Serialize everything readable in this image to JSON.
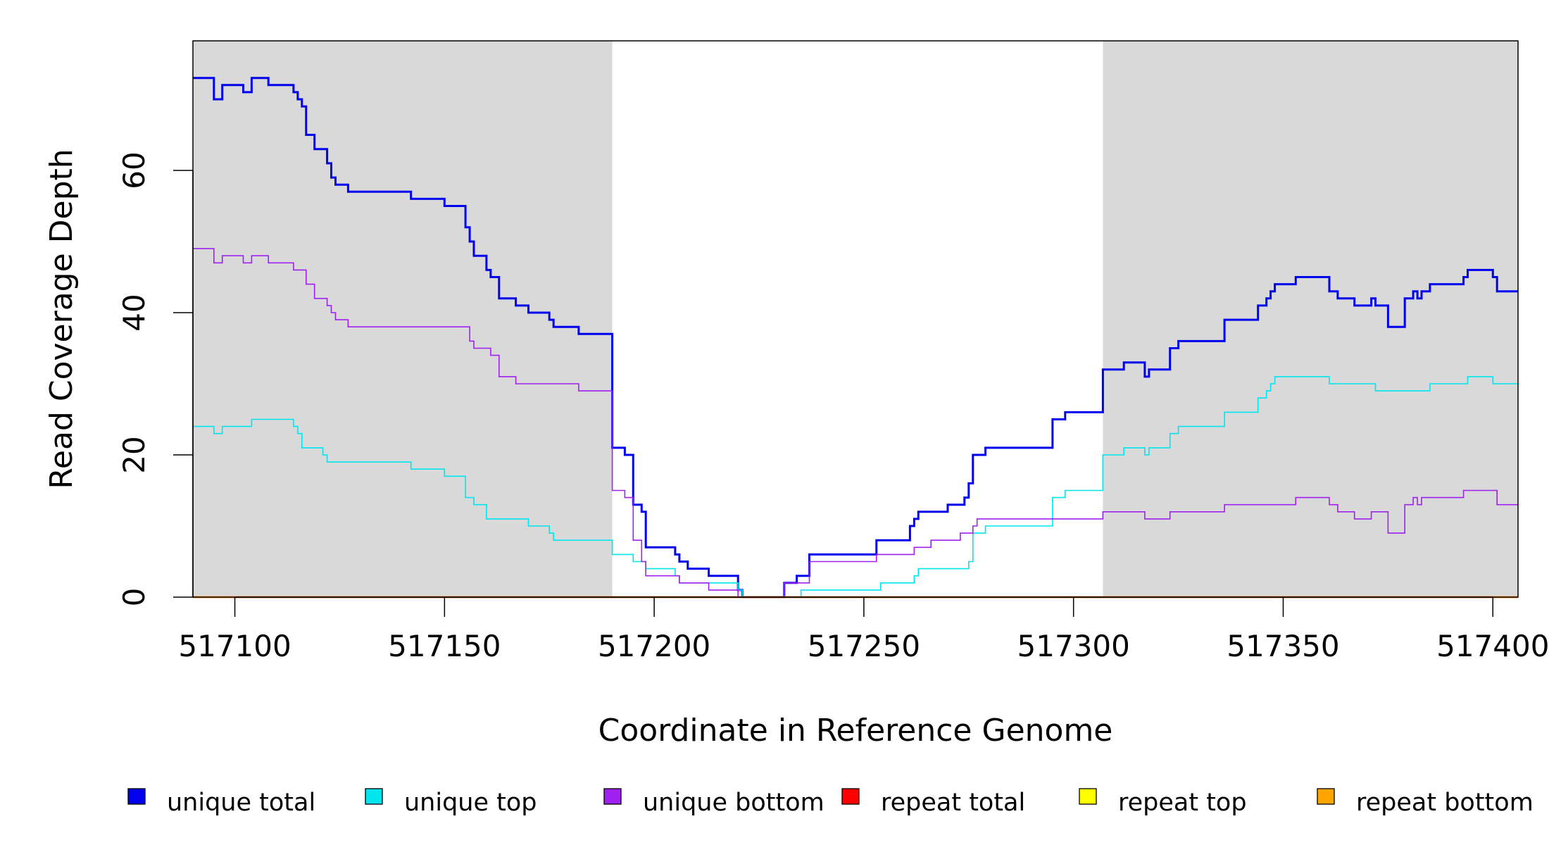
{
  "chart_data": {
    "type": "line",
    "step": true,
    "xlabel": "Coordinate in Reference Genome",
    "ylabel": "Read Coverage Depth",
    "xlim": [
      517090,
      517406
    ],
    "ylim": [
      0,
      78
    ],
    "x_ticks": [
      517100,
      517150,
      517200,
      517250,
      517300,
      517350,
      517400
    ],
    "x_tick_labels": [
      "517100",
      "517150",
      "517200",
      "517250",
      "517300",
      "517350",
      "517400"
    ],
    "y_ticks": [
      0,
      20,
      40,
      60
    ],
    "y_tick_labels": [
      "0",
      "20",
      "40",
      "60"
    ],
    "shaded_regions": [
      {
        "from": 517090,
        "to": 517190,
        "color": "#d9d9d9"
      },
      {
        "from": 517307,
        "to": 517406,
        "color": "#d9d9d9"
      }
    ],
    "legend_position": "bottom",
    "series": [
      {
        "name": "unique total",
        "color": "#0000ee",
        "width": 3,
        "points": [
          [
            517090,
            73
          ],
          [
            517095,
            70
          ],
          [
            517097,
            72
          ],
          [
            517102,
            71
          ],
          [
            517104,
            73
          ],
          [
            517108,
            72
          ],
          [
            517114,
            71
          ],
          [
            517115,
            70
          ],
          [
            517116,
            69
          ],
          [
            517117,
            65
          ],
          [
            517119,
            63
          ],
          [
            517122,
            61
          ],
          [
            517123,
            59
          ],
          [
            517124,
            58
          ],
          [
            517127,
            57
          ],
          [
            517142,
            56
          ],
          [
            517150,
            55
          ],
          [
            517155,
            52
          ],
          [
            517156,
            50
          ],
          [
            517157,
            48
          ],
          [
            517160,
            46
          ],
          [
            517161,
            45
          ],
          [
            517163,
            42
          ],
          [
            517167,
            41
          ],
          [
            517170,
            40
          ],
          [
            517175,
            39
          ],
          [
            517176,
            38
          ],
          [
            517182,
            37
          ],
          [
            517190,
            21
          ],
          [
            517193,
            20
          ],
          [
            517195,
            13
          ],
          [
            517197,
            12
          ],
          [
            517198,
            7
          ],
          [
            517205,
            6
          ],
          [
            517206,
            5
          ],
          [
            517208,
            4
          ],
          [
            517213,
            3
          ],
          [
            517220,
            1
          ],
          [
            517221,
            0
          ],
          [
            517231,
            2
          ],
          [
            517234,
            3
          ],
          [
            517237,
            6
          ],
          [
            517253,
            8
          ],
          [
            517261,
            10
          ],
          [
            517262,
            11
          ],
          [
            517263,
            12
          ],
          [
            517270,
            13
          ],
          [
            517274,
            14
          ],
          [
            517275,
            16
          ],
          [
            517276,
            20
          ],
          [
            517279,
            21
          ],
          [
            517295,
            25
          ],
          [
            517298,
            26
          ],
          [
            517307,
            32
          ],
          [
            517312,
            33
          ],
          [
            517317,
            31
          ],
          [
            517318,
            32
          ],
          [
            517323,
            35
          ],
          [
            517325,
            36
          ],
          [
            517336,
            39
          ],
          [
            517344,
            41
          ],
          [
            517346,
            42
          ],
          [
            517347,
            43
          ],
          [
            517348,
            44
          ],
          [
            517353,
            45
          ],
          [
            517361,
            43
          ],
          [
            517363,
            42
          ],
          [
            517367,
            41
          ],
          [
            517371,
            42
          ],
          [
            517372,
            41
          ],
          [
            517375,
            38
          ],
          [
            517379,
            42
          ],
          [
            517381,
            43
          ],
          [
            517382,
            42
          ],
          [
            517383,
            43
          ],
          [
            517385,
            44
          ],
          [
            517393,
            45
          ],
          [
            517394,
            46
          ],
          [
            517400,
            45
          ],
          [
            517401,
            43
          ],
          [
            517406,
            43
          ]
        ]
      },
      {
        "name": "unique top",
        "color": "#00e5ee",
        "width": 1.6,
        "points": [
          [
            517090,
            24
          ],
          [
            517095,
            23
          ],
          [
            517097,
            24
          ],
          [
            517104,
            25
          ],
          [
            517114,
            24
          ],
          [
            517115,
            23
          ],
          [
            517116,
            21
          ],
          [
            517121,
            20
          ],
          [
            517122,
            19
          ],
          [
            517142,
            18
          ],
          [
            517150,
            17
          ],
          [
            517155,
            14
          ],
          [
            517157,
            13
          ],
          [
            517160,
            11
          ],
          [
            517170,
            10
          ],
          [
            517175,
            9
          ],
          [
            517176,
            8
          ],
          [
            517190,
            6
          ],
          [
            517195,
            5
          ],
          [
            517198,
            4
          ],
          [
            517205,
            3
          ],
          [
            517206,
            2
          ],
          [
            517214,
            2
          ],
          [
            517220,
            1
          ],
          [
            517221,
            0
          ],
          [
            517235,
            1
          ],
          [
            517254,
            2
          ],
          [
            517262,
            3
          ],
          [
            517263,
            4
          ],
          [
            517275,
            5
          ],
          [
            517276,
            9
          ],
          [
            517279,
            10
          ],
          [
            517295,
            14
          ],
          [
            517298,
            15
          ],
          [
            517307,
            20
          ],
          [
            517312,
            21
          ],
          [
            517317,
            20
          ],
          [
            517318,
            21
          ],
          [
            517323,
            23
          ],
          [
            517325,
            24
          ],
          [
            517336,
            26
          ],
          [
            517344,
            28
          ],
          [
            517346,
            29
          ],
          [
            517347,
            30
          ],
          [
            517348,
            31
          ],
          [
            517361,
            30
          ],
          [
            517372,
            29
          ],
          [
            517385,
            30
          ],
          [
            517394,
            31
          ],
          [
            517400,
            30
          ],
          [
            517406,
            30
          ]
        ]
      },
      {
        "name": "unique bottom",
        "color": "#a020f0",
        "width": 1.6,
        "points": [
          [
            517090,
            49
          ],
          [
            517095,
            47
          ],
          [
            517097,
            48
          ],
          [
            517102,
            47
          ],
          [
            517104,
            48
          ],
          [
            517108,
            47
          ],
          [
            517114,
            46
          ],
          [
            517117,
            44
          ],
          [
            517119,
            42
          ],
          [
            517122,
            41
          ],
          [
            517123,
            40
          ],
          [
            517124,
            39
          ],
          [
            517127,
            38
          ],
          [
            517156,
            36
          ],
          [
            517157,
            35
          ],
          [
            517161,
            34
          ],
          [
            517163,
            31
          ],
          [
            517167,
            30
          ],
          [
            517182,
            29
          ],
          [
            517190,
            15
          ],
          [
            517193,
            14
          ],
          [
            517195,
            8
          ],
          [
            517197,
            5
          ],
          [
            517198,
            3
          ],
          [
            517206,
            2
          ],
          [
            517213,
            1
          ],
          [
            517220,
            0
          ],
          [
            517231,
            2
          ],
          [
            517237,
            5
          ],
          [
            517253,
            6
          ],
          [
            517262,
            7
          ],
          [
            517266,
            8
          ],
          [
            517273,
            9
          ],
          [
            517276,
            10
          ],
          [
            517277,
            11
          ],
          [
            517307,
            12
          ],
          [
            517317,
            11
          ],
          [
            517323,
            12
          ],
          [
            517336,
            13
          ],
          [
            517353,
            14
          ],
          [
            517361,
            13
          ],
          [
            517363,
            12
          ],
          [
            517367,
            11
          ],
          [
            517371,
            12
          ],
          [
            517375,
            9
          ],
          [
            517379,
            13
          ],
          [
            517381,
            14
          ],
          [
            517382,
            13
          ],
          [
            517383,
            14
          ],
          [
            517393,
            15
          ],
          [
            517401,
            13
          ],
          [
            517406,
            13
          ]
        ]
      },
      {
        "name": "repeat total",
        "color": "#ff0000",
        "width": 2.5,
        "points": [
          [
            517090,
            0
          ],
          [
            517406,
            0
          ]
        ]
      },
      {
        "name": "repeat top",
        "color": "#ffff00",
        "width": 2,
        "points": [
          [
            517090,
            0
          ],
          [
            517406,
            0
          ]
        ]
      },
      {
        "name": "repeat bottom",
        "color": "#ffa500",
        "width": 2.5,
        "points": [
          [
            517090,
            0
          ],
          [
            517406,
            0
          ]
        ]
      }
    ]
  }
}
